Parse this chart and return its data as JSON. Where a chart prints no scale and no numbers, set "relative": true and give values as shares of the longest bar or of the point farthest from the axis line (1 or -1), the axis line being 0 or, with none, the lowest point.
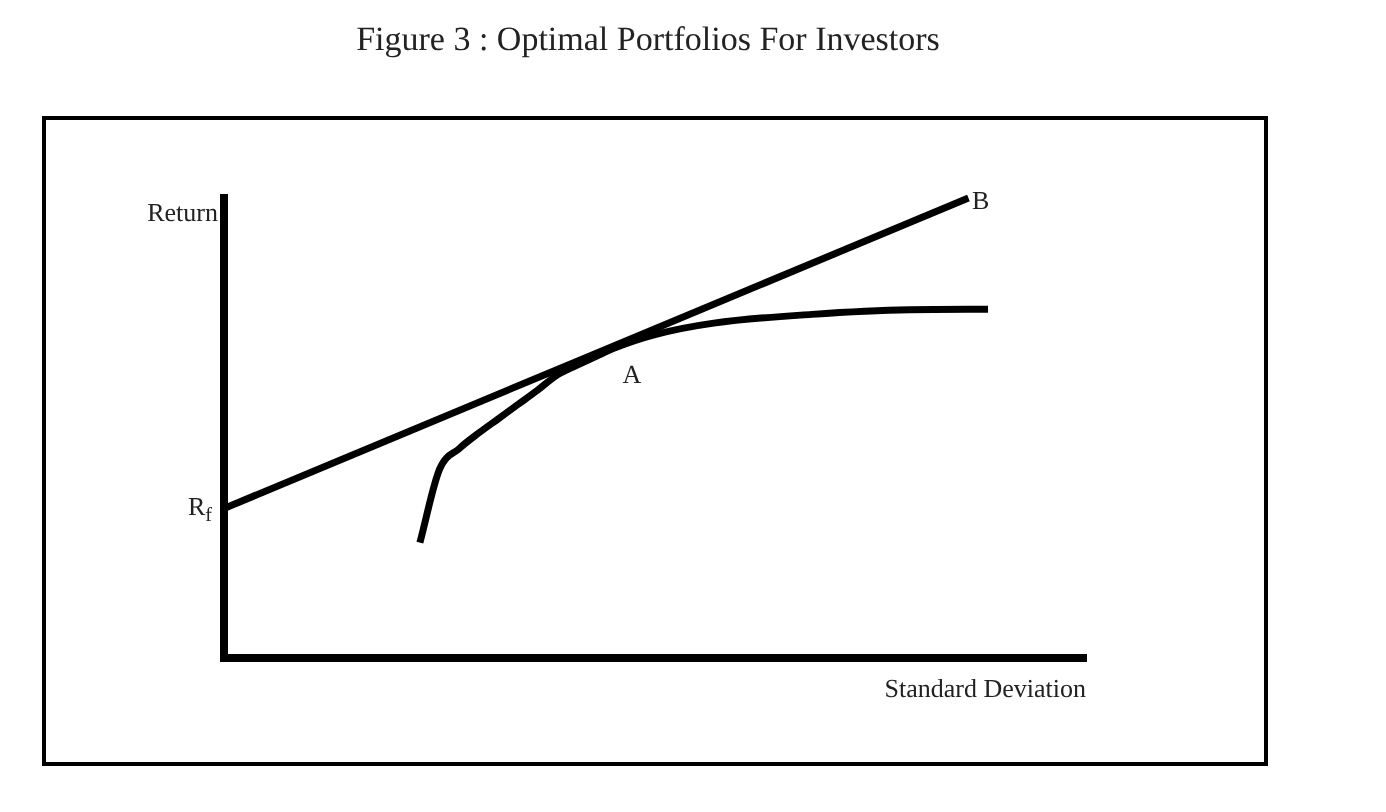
{
  "chart_data": {
    "type": "line",
    "title": "Figure 3 : Optimal Portfolios For Investors",
    "xlabel": "Standard Deviation",
    "ylabel": "Return",
    "relative": true,
    "legend": false,
    "grid": false,
    "marker": "none",
    "line_style": "solid",
    "categories": [
      null,
      null,
      null,
      null,
      null,
      null,
      null,
      null,
      null,
      null,
      null,
      null,
      null,
      null,
      null,
      null,
      null,
      null,
      null,
      null,
      null,
      null,
      null,
      null,
      null,
      null,
      null,
      null,
      null,
      null,
      null,
      null,
      null,
      null,
      null,
      null,
      null,
      null,
      null,
      null,
      null,
      null,
      null,
      null,
      null
    ],
    "series": [
      {
        "color": "#000000",
        "values": [
          0.325,
          null,
          null,
          null,
          null,
          null,
          null,
          null,
          null,
          null,
          null,
          null,
          null,
          null,
          null,
          null,
          null,
          null,
          null,
          null,
          null,
          null,
          null,
          null,
          null,
          null,
          null,
          null,
          null,
          null,
          null,
          null,
          null,
          null,
          null,
          null,
          null,
          null,
          1.0,
          null,
          null,
          null,
          null,
          null,
          null
        ]
      },
      {
        "color": "#000000",
        "values": [
          null,
          null,
          null,
          null,
          null,
          null,
          null,
          null,
          null,
          null,
          0.251,
          0.41,
          0.455,
          0.489,
          0.52,
          0.551,
          0.582,
          0.615,
          0.636,
          0.656,
          0.675,
          null,
          0.703,
          null,
          null,
          0.728,
          null,
          null,
          null,
          null,
          0.747,
          null,
          null,
          null,
          null,
          0.757,
          null,
          null,
          null,
          0.758,
          null,
          null,
          null,
          null,
          null
        ]
      }
    ],
    "annotations": [
      "A",
      "B",
      "R$_{f}$"
    ]
  }
}
